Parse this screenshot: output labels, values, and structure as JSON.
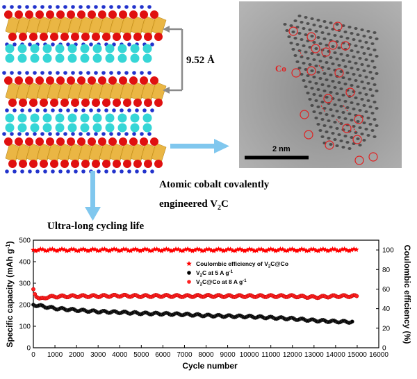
{
  "structure": {
    "interlayer_spacing": "9.52 Å",
    "atom_colors": {
      "vanadium": "#e9b33a",
      "oxygen": "#e01010",
      "hydrogen": "#2233cc",
      "cobalt": "#36d6d6",
      "carbon": "#8a7a66"
    }
  },
  "tem": {
    "cobalt_label": "Co",
    "scale_bar_label": "2 nm",
    "marker_color": "#e02020"
  },
  "captions": {
    "line1": "Atomic cobalt covalently",
    "line2_main": "engineered V",
    "line2_sub": "2",
    "line2_end": "C",
    "cycling": "Ultra-long cycling life"
  },
  "chart_data": {
    "type": "scatter",
    "xlabel": "Cycle number",
    "ylabel_left": "Specific capacity (mAh g",
    "ylabel_left_sup": "-1",
    "ylabel_left_end": ")",
    "ylabel_right": "Coulombic efficiency (%)",
    "xlim": [
      0,
      16000
    ],
    "ylim_left": [
      0,
      500
    ],
    "ylim_right": [
      0,
      110
    ],
    "xticks": [
      0,
      1000,
      2000,
      3000,
      4000,
      5000,
      6000,
      7000,
      8000,
      9000,
      10000,
      11000,
      12000,
      13000,
      14000,
      15000,
      16000
    ],
    "yticks_left": [
      0,
      100,
      200,
      300,
      400,
      500
    ],
    "yticks_right": [
      0,
      20,
      40,
      60,
      80,
      100
    ],
    "legend_position": "upper-center",
    "series": [
      {
        "name_main": "Coulombic efficiency of V",
        "name_sub": "2",
        "name_end": "C@Co",
        "axis": "right",
        "marker": "star",
        "color": "#ff0000",
        "x": [
          0,
          1000,
          2000,
          3000,
          4000,
          5000,
          6000,
          7000,
          8000,
          9000,
          10000,
          11000,
          12000,
          13000,
          14000,
          15000
        ],
        "y": [
          100,
          100,
          100,
          100,
          100,
          100,
          100,
          100,
          100,
          100,
          100,
          100,
          100,
          100,
          100,
          100
        ]
      },
      {
        "name_main": "V",
        "name_sub": "2",
        "name_end": "C at 5 A g",
        "name_sup": "-1",
        "axis": "left",
        "marker": "circle",
        "color": "#000000",
        "x": [
          0,
          1000,
          2000,
          3000,
          4000,
          5000,
          6000,
          7000,
          8000,
          9000,
          10000,
          11000,
          12000,
          13000,
          14000,
          14800
        ],
        "y": [
          200,
          183,
          175,
          168,
          165,
          160,
          158,
          155,
          150,
          147,
          145,
          140,
          135,
          127,
          122,
          120
        ]
      },
      {
        "name_main": "V",
        "name_sub": "2",
        "name_end": "C@Co at 8 A g",
        "name_sup": "-1",
        "axis": "left",
        "marker": "circle",
        "color": "#ff2020",
        "x": [
          0,
          100,
          300,
          600,
          1000,
          2000,
          3000,
          4000,
          5000,
          6000,
          7000,
          8000,
          9000,
          10000,
          11000,
          12000,
          13000,
          14000,
          15000
        ],
        "y": [
          272,
          245,
          225,
          235,
          238,
          240,
          240,
          242,
          240,
          241,
          240,
          241,
          240,
          240,
          240,
          240,
          235,
          240,
          240
        ]
      }
    ]
  }
}
